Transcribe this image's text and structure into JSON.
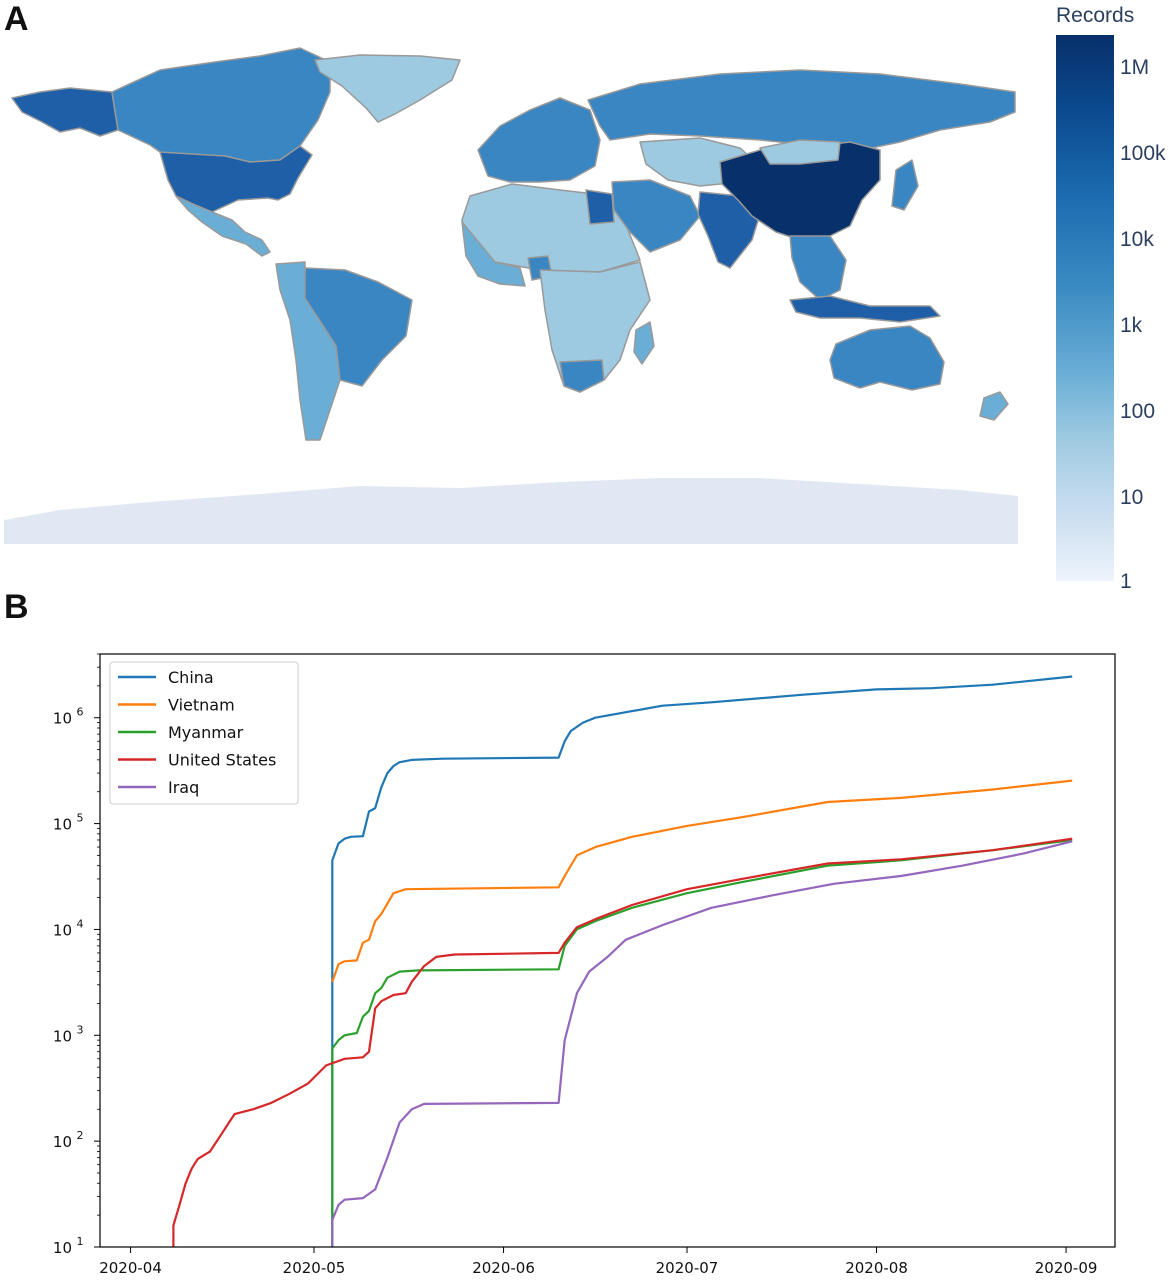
{
  "panel_labels": {
    "a": "A",
    "b": "B"
  },
  "colors": {
    "china": "#08306b",
    "high": "#1f5fa8",
    "mid": "#3a86c2",
    "low": "#6aaed6",
    "lower": "#9ecae1",
    "lowest": "#c6dbef",
    "antarctica": "#e2e8f3",
    "border": "#999999"
  },
  "chart_data": [
    {
      "type": "choropleth",
      "colorbar": {
        "title": "Records",
        "ticks": [
          "1M",
          "100k",
          "10k",
          "1k",
          "100",
          "10",
          "1"
        ],
        "scale": "log",
        "colormap": "Blues"
      }
    },
    {
      "type": "line",
      "y_scale": "log",
      "ylim": [
        10,
        4000000
      ],
      "xlim": [
        "2020-03-27",
        "2020-09-09"
      ],
      "x_ticks": [
        "2020-04",
        "2020-05",
        "2020-06",
        "2020-07",
        "2020-08",
        "2020-09"
      ],
      "y_ticks": [
        {
          "value": 10,
          "base": "10",
          "exp": "1"
        },
        {
          "value": 100,
          "base": "10",
          "exp": "2"
        },
        {
          "value": 1000,
          "base": "10",
          "exp": "3"
        },
        {
          "value": 10000,
          "base": "10",
          "exp": "4"
        },
        {
          "value": 100000,
          "base": "10",
          "exp": "5"
        },
        {
          "value": 1000000,
          "base": "10",
          "exp": "6"
        }
      ],
      "legend_position": "top-left",
      "series": [
        {
          "name": "China",
          "color": "#1f77b4",
          "points": [
            [
              "2020-05-04",
              10
            ],
            [
              "2020-05-04",
              45000
            ],
            [
              "2020-05-05",
              65000
            ],
            [
              "2020-05-06",
              72000
            ],
            [
              "2020-05-07",
              75000
            ],
            [
              "2020-05-09",
              76000
            ],
            [
              "2020-05-10",
              130000
            ],
            [
              "2020-05-11",
              140000
            ],
            [
              "2020-05-12",
              220000
            ],
            [
              "2020-05-13",
              300000
            ],
            [
              "2020-05-14",
              350000
            ],
            [
              "2020-05-15",
              380000
            ],
            [
              "2020-05-17",
              400000
            ],
            [
              "2020-05-22",
              410000
            ],
            [
              "2020-06-10",
              420000
            ],
            [
              "2020-06-11",
              600000
            ],
            [
              "2020-06-12",
              750000
            ],
            [
              "2020-06-14",
              900000
            ],
            [
              "2020-06-16",
              1000000
            ],
            [
              "2020-06-20",
              1100000
            ],
            [
              "2020-06-27",
              1300000
            ],
            [
              "2020-07-05",
              1400000
            ],
            [
              "2020-07-20",
              1650000
            ],
            [
              "2020-08-01",
              1850000
            ],
            [
              "2020-08-10",
              1900000
            ],
            [
              "2020-08-20",
              2050000
            ],
            [
              "2020-09-02",
              2450000
            ]
          ]
        },
        {
          "name": "Vietnam",
          "color": "#ff7f0e",
          "points": [
            [
              "2020-05-04",
              3200
            ],
            [
              "2020-05-05",
              4700
            ],
            [
              "2020-05-06",
              5000
            ],
            [
              "2020-05-08",
              5100
            ],
            [
              "2020-05-09",
              7500
            ],
            [
              "2020-05-10",
              8000
            ],
            [
              "2020-05-11",
              12000
            ],
            [
              "2020-05-12",
              14000
            ],
            [
              "2020-05-14",
              22000
            ],
            [
              "2020-05-16",
              24000
            ],
            [
              "2020-06-10",
              25000
            ],
            [
              "2020-06-11",
              32000
            ],
            [
              "2020-06-13",
              50000
            ],
            [
              "2020-06-16",
              60000
            ],
            [
              "2020-06-22",
              75000
            ],
            [
              "2020-07-01",
              95000
            ],
            [
              "2020-07-10",
              115000
            ],
            [
              "2020-07-24",
              160000
            ],
            [
              "2020-08-05",
              175000
            ],
            [
              "2020-08-20",
              210000
            ],
            [
              "2020-09-02",
              255000
            ]
          ]
        },
        {
          "name": "Myanmar",
          "color": "#2ca02c",
          "points": [
            [
              "2020-05-04",
              10
            ],
            [
              "2020-05-04",
              750
            ],
            [
              "2020-05-05",
              900
            ],
            [
              "2020-05-06",
              1000
            ],
            [
              "2020-05-08",
              1050
            ],
            [
              "2020-05-09",
              1500
            ],
            [
              "2020-05-10",
              1700
            ],
            [
              "2020-05-11",
              2500
            ],
            [
              "2020-05-12",
              2800
            ],
            [
              "2020-05-13",
              3500
            ],
            [
              "2020-05-15",
              4000
            ],
            [
              "2020-05-18",
              4100
            ],
            [
              "2020-06-10",
              4200
            ],
            [
              "2020-06-11",
              7000
            ],
            [
              "2020-06-13",
              10000
            ],
            [
              "2020-06-16",
              12000
            ],
            [
              "2020-06-22",
              16000
            ],
            [
              "2020-07-01",
              22000
            ],
            [
              "2020-07-10",
              28000
            ],
            [
              "2020-07-24",
              40000
            ],
            [
              "2020-08-05",
              45000
            ],
            [
              "2020-08-20",
              56000
            ],
            [
              "2020-09-02",
              70000
            ]
          ]
        },
        {
          "name": "United States",
          "color": "#d62728",
          "points": [
            [
              "2020-04-08",
              10
            ],
            [
              "2020-04-08",
              16
            ],
            [
              "2020-04-09",
              25
            ],
            [
              "2020-04-10",
              40
            ],
            [
              "2020-04-11",
              55
            ],
            [
              "2020-04-12",
              68
            ],
            [
              "2020-04-14",
              80
            ],
            [
              "2020-04-16",
              120
            ],
            [
              "2020-04-18",
              180
            ],
            [
              "2020-04-21",
              200
            ],
            [
              "2020-04-24",
              230
            ],
            [
              "2020-04-27",
              280
            ],
            [
              "2020-04-30",
              350
            ],
            [
              "2020-05-03",
              520
            ],
            [
              "2020-05-06",
              600
            ],
            [
              "2020-05-09",
              620
            ],
            [
              "2020-05-10",
              700
            ],
            [
              "2020-05-11",
              1800
            ],
            [
              "2020-05-12",
              2100
            ],
            [
              "2020-05-14",
              2400
            ],
            [
              "2020-05-16",
              2500
            ],
            [
              "2020-05-17",
              3200
            ],
            [
              "2020-05-19",
              4500
            ],
            [
              "2020-05-21",
              5500
            ],
            [
              "2020-05-24",
              5800
            ],
            [
              "2020-06-10",
              6000
            ],
            [
              "2020-06-11",
              7500
            ],
            [
              "2020-06-13",
              10500
            ],
            [
              "2020-06-16",
              12500
            ],
            [
              "2020-06-22",
              17000
            ],
            [
              "2020-07-01",
              24000
            ],
            [
              "2020-07-10",
              30000
            ],
            [
              "2020-07-24",
              42000
            ],
            [
              "2020-08-05",
              46000
            ],
            [
              "2020-08-20",
              56000
            ],
            [
              "2020-09-02",
              72000
            ]
          ]
        },
        {
          "name": "Iraq",
          "color": "#9467bd",
          "points": [
            [
              "2020-05-04",
              10
            ],
            [
              "2020-05-04",
              18
            ],
            [
              "2020-05-05",
              25
            ],
            [
              "2020-05-06",
              28
            ],
            [
              "2020-05-09",
              29
            ],
            [
              "2020-05-11",
              35
            ],
            [
              "2020-05-13",
              70
            ],
            [
              "2020-05-15",
              150
            ],
            [
              "2020-05-17",
              200
            ],
            [
              "2020-05-19",
              225
            ],
            [
              "2020-06-10",
              230
            ],
            [
              "2020-06-11",
              900
            ],
            [
              "2020-06-13",
              2500
            ],
            [
              "2020-06-15",
              4000
            ],
            [
              "2020-06-18",
              5500
            ],
            [
              "2020-06-21",
              8000
            ],
            [
              "2020-06-27",
              11000
            ],
            [
              "2020-07-05",
              16000
            ],
            [
              "2020-07-15",
              21000
            ],
            [
              "2020-07-25",
              27000
            ],
            [
              "2020-08-05",
              32000
            ],
            [
              "2020-08-15",
              40000
            ],
            [
              "2020-08-25",
              52000
            ],
            [
              "2020-09-02",
              68000
            ]
          ]
        }
      ]
    }
  ]
}
